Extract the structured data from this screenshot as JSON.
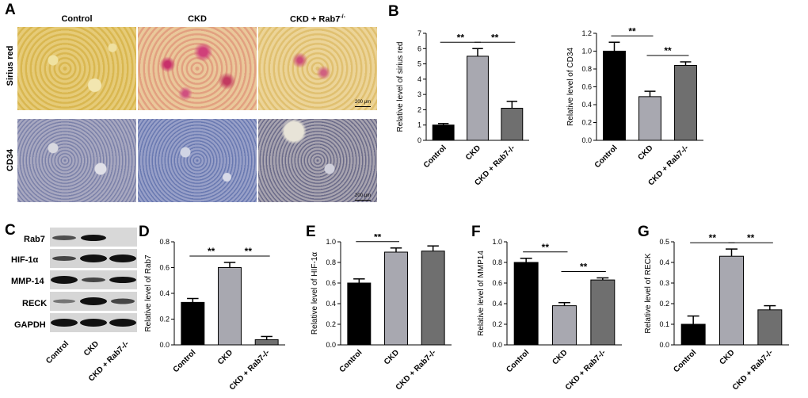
{
  "panels": {
    "A": "A",
    "B": "B",
    "C": "C",
    "D": "D",
    "E": "E",
    "F": "F",
    "G": "G"
  },
  "micrographs": {
    "columns": [
      "Control",
      "CKD",
      "CKD + Rab7",
      "-/-"
    ],
    "rows": [
      "Sirius red",
      "CD34"
    ],
    "scale_label": "200 μm"
  },
  "western_blot": {
    "bands": [
      "Rab7",
      "HIF-1α",
      "MMP-14",
      "RECK",
      "GAPDH"
    ],
    "lanes": [
      "Control",
      "CKD",
      "CKD + Rab7-/-"
    ]
  },
  "significance_mark": "**",
  "chart_data": [
    {
      "id": "B1",
      "type": "bar",
      "categories": [
        "Control",
        "CKD",
        "CKD + Rab7-/-"
      ],
      "values": [
        1.0,
        5.5,
        2.1
      ],
      "errors": [
        0.1,
        0.5,
        0.45
      ],
      "ylabel": "Relative level of sirius red",
      "ylim": [
        0,
        7
      ],
      "ticks": [
        0,
        1,
        2,
        3,
        4,
        5,
        6,
        7
      ],
      "sig": [
        [
          0,
          1
        ],
        [
          1,
          2
        ]
      ]
    },
    {
      "id": "B2",
      "type": "bar",
      "categories": [
        "Control",
        "CKD",
        "CKD + Rab7-/-"
      ],
      "values": [
        1.0,
        0.49,
        0.84
      ],
      "errors": [
        0.1,
        0.06,
        0.04
      ],
      "ylabel": "Relative level of CD34",
      "ylim": [
        0,
        1.2
      ],
      "ticks": [
        0.0,
        0.2,
        0.4,
        0.6,
        0.8,
        1.0,
        1.2
      ],
      "sig": [
        [
          0,
          1
        ],
        [
          1,
          2
        ]
      ]
    },
    {
      "id": "D",
      "type": "bar",
      "categories": [
        "Control",
        "CKD",
        "CKD + Rab7-/-"
      ],
      "values": [
        0.33,
        0.6,
        0.04
      ],
      "errors": [
        0.03,
        0.04,
        0.025
      ],
      "ylabel": "Relative level of Rab7",
      "ylim": [
        0,
        0.8
      ],
      "ticks": [
        0.0,
        0.2,
        0.4,
        0.6,
        0.8
      ],
      "sig": [
        [
          0,
          1
        ],
        [
          1,
          2
        ]
      ]
    },
    {
      "id": "E",
      "type": "bar",
      "categories": [
        "Control",
        "CKD",
        "CKD + Rab7-/-"
      ],
      "values": [
        0.6,
        0.9,
        0.91
      ],
      "errors": [
        0.04,
        0.04,
        0.05
      ],
      "ylabel": "Relative level of HIF-1α",
      "ylim": [
        0,
        1.0
      ],
      "ticks": [
        0.0,
        0.2,
        0.4,
        0.6,
        0.8,
        1.0
      ],
      "sig": [
        [
          0,
          1
        ]
      ]
    },
    {
      "id": "F",
      "type": "bar",
      "categories": [
        "Control",
        "CKD",
        "CKD + Rab7-/-"
      ],
      "values": [
        0.8,
        0.38,
        0.63
      ],
      "errors": [
        0.04,
        0.03,
        0.02
      ],
      "ylabel": "Relative level of MMP14",
      "ylim": [
        0,
        1.0
      ],
      "ticks": [
        0.0,
        0.2,
        0.4,
        0.6,
        0.8,
        1.0
      ],
      "sig": [
        [
          0,
          1
        ],
        [
          1,
          2
        ]
      ]
    },
    {
      "id": "G",
      "type": "bar",
      "categories": [
        "Control",
        "CKD",
        "CKD + Rab7-/-"
      ],
      "values": [
        0.1,
        0.43,
        0.17
      ],
      "errors": [
        0.04,
        0.035,
        0.02
      ],
      "ylabel": "Relative level of RECK",
      "ylim": [
        0,
        0.5
      ],
      "ticks": [
        0.0,
        0.1,
        0.2,
        0.3,
        0.4,
        0.5
      ],
      "sig": [
        [
          0,
          1
        ],
        [
          1,
          2
        ]
      ]
    }
  ],
  "colors": {
    "control": "#000000",
    "ckd": "#a8a8b0",
    "rab7": "#6f6f6f"
  }
}
